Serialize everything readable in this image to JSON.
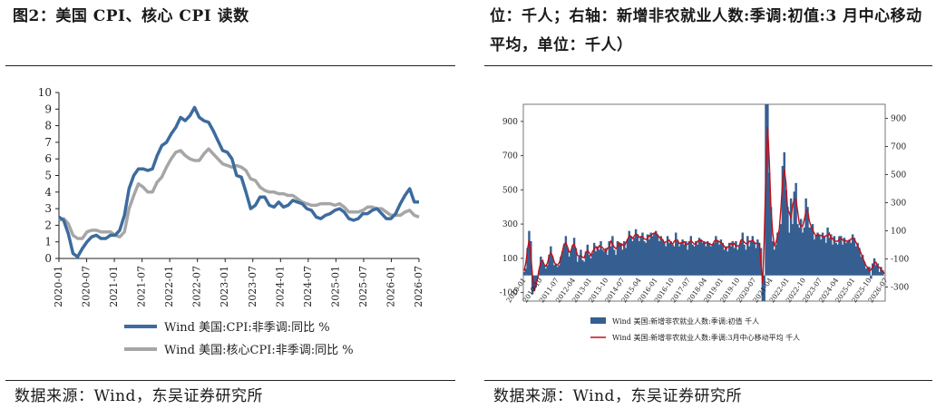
{
  "left": {
    "title": "图2：美国 CPI、核心 CPI 读数",
    "source": "数据来源：Wind，东吴证券研究所",
    "chart_data": {
      "type": "line",
      "title": "",
      "ylim": [
        0,
        10
      ],
      "yticks": [
        "0",
        "1",
        "2",
        "3",
        "4",
        "5",
        "6",
        "7",
        "8",
        "9",
        "10"
      ],
      "xticks": [
        "2020-01",
        "2020-07",
        "2021-01",
        "2021-07",
        "2022-01",
        "2022-07",
        "2023-01",
        "2023-07",
        "2024-01",
        "2024-07",
        "2025-01",
        "2025-07",
        "2026-01",
        "2026-07"
      ],
      "legend_position": "bottom",
      "colors": {
        "cpi": "#3d6b9e",
        "core": "#a6a6a6"
      },
      "series": [
        {
          "name": "Wind 美国:CPI:非季调:同比 %",
          "values": [
            2.5,
            2.3,
            1.5,
            0.3,
            0.1,
            0.6,
            1.0,
            1.3,
            1.4,
            1.2,
            1.2,
            1.4,
            1.4,
            1.7,
            2.6,
            4.2,
            5.0,
            5.4,
            5.4,
            5.3,
            5.4,
            6.2,
            6.8,
            7.0,
            7.5,
            7.9,
            8.5,
            8.3,
            8.6,
            9.1,
            8.5,
            8.3,
            8.2,
            7.7,
            7.1,
            6.5,
            6.4,
            6.0,
            5.0,
            4.9,
            4.0,
            3.0,
            3.2,
            3.7,
            3.7,
            3.2,
            3.1,
            3.4,
            3.1,
            3.2,
            3.5,
            3.4,
            3.3,
            3.0,
            2.9,
            2.5,
            2.4,
            2.6,
            2.7,
            2.9,
            3.0,
            2.8,
            2.4,
            2.3,
            2.4,
            2.7,
            2.7,
            2.9,
            3.0,
            2.7,
            2.4,
            2.4,
            2.7,
            3.3,
            3.8,
            4.2,
            3.4,
            3.4
          ],
          "color": "#3d6b9e"
        },
        {
          "name": "Wind 美国:核心CPI:非季调:同比 %",
          "values": [
            2.3,
            2.4,
            2.1,
            1.4,
            1.2,
            1.2,
            1.6,
            1.7,
            1.7,
            1.6,
            1.6,
            1.6,
            1.4,
            1.3,
            1.6,
            3.0,
            3.8,
            4.5,
            4.3,
            4.0,
            4.0,
            4.6,
            4.9,
            5.5,
            6.0,
            6.4,
            6.5,
            6.2,
            6.0,
            5.9,
            5.9,
            6.3,
            6.6,
            6.3,
            6.0,
            5.7,
            5.6,
            5.5,
            5.6,
            5.5,
            5.3,
            4.8,
            4.7,
            4.3,
            4.1,
            4.0,
            4.0,
            3.9,
            3.9,
            3.8,
            3.8,
            3.6,
            3.4,
            3.3,
            3.2,
            3.2,
            3.3,
            3.3,
            3.3,
            3.2,
            3.3,
            3.1,
            2.8,
            2.8,
            2.8,
            2.9,
            3.1,
            3.1,
            3.0,
            3.0,
            2.8,
            2.6,
            2.6,
            2.6,
            2.8,
            2.9,
            2.6,
            2.5
          ],
          "color": "#a6a6a6"
        }
      ]
    }
  },
  "right": {
    "title": "位：千人；右轴：新增非农就业人数:季调:初值:3 月中心移动平均，单位：千人）",
    "source": "数据来源：Wind，东吴证券研究所",
    "chart_data": {
      "type": "bar",
      "title": "",
      "ylim": [
        -150,
        1000
      ],
      "yticks_left": [
        "-100",
        "100",
        "300",
        "500",
        "700",
        "900"
      ],
      "yticks_right": [
        "-300",
        "-100",
        "100",
        "300",
        "500",
        "700",
        "900"
      ],
      "xticks": [
        "2010-01",
        "2010-10",
        "2011-07",
        "2012-04",
        "2013-01",
        "2013-10",
        "2014-07",
        "2015-04",
        "2016-01",
        "2016-10",
        "2017-07",
        "2018-04",
        "2019-01",
        "2019-10",
        "2020-07",
        "2021-04",
        "2022-01",
        "2022-10",
        "2023-07",
        "2024-04",
        "2025-01",
        "2025-10",
        "2026-07"
      ],
      "legend_position": "bottom",
      "colors": {
        "bars": "#365f91",
        "ma": "#c0101a"
      },
      "series": [
        {
          "name": "Wind 美国:新增非农就业人数:季调:初值 千人",
          "values": [
            20,
            40,
            160,
            260,
            200,
            -110,
            -90,
            -70,
            -20,
            30,
            110,
            90,
            60,
            40,
            60,
            120,
            170,
            110,
            60,
            70,
            50,
            60,
            110,
            140,
            180,
            230,
            160,
            110,
            140,
            170,
            220,
            160,
            80,
            110,
            150,
            90,
            80,
            140,
            180,
            120,
            100,
            130,
            190,
            140,
            170,
            150,
            200,
            150,
            140,
            160,
            120,
            200,
            170,
            230,
            150,
            120,
            200,
            180,
            190,
            150,
            200,
            160,
            210,
            260,
            230,
            200,
            220,
            270,
            240,
            200,
            230,
            250,
            200,
            190,
            240,
            210,
            250,
            230,
            250,
            260,
            240,
            200,
            230,
            210,
            190,
            170,
            230,
            190,
            200,
            180,
            170,
            250,
            200,
            170,
            190,
            210,
            180,
            200,
            150,
            200,
            230,
            180,
            170,
            200,
            180,
            220,
            210,
            190,
            200,
            170,
            200,
            190,
            170,
            180,
            190,
            230,
            200,
            180,
            210,
            190,
            150,
            170,
            140,
            190,
            170,
            200,
            160,
            200,
            150,
            170,
            200,
            250,
            180,
            150,
            230,
            170,
            200,
            230,
            190,
            160,
            210,
            190,
            160,
            -150,
            -150,
            1000,
            1000,
            600,
            400,
            200,
            150,
            180,
            250,
            260,
            300,
            640,
            720,
            500,
            400,
            250,
            450,
            300,
            490,
            540,
            300,
            280,
            330,
            250,
            280,
            450,
            400,
            280,
            280,
            300,
            210,
            230,
            250,
            240,
            210,
            250,
            230,
            190,
            280,
            220,
            240,
            180,
            230,
            190,
            180,
            230,
            230,
            180,
            220,
            190,
            200,
            210,
            190,
            240,
            220,
            170,
            190,
            160,
            110,
            120,
            80,
            40,
            50,
            50,
            -20,
            70,
            100,
            60,
            70,
            20,
            50,
            30,
            0
          ],
          "color": "#365f91"
        },
        {
          "name": "Wind 美国:新增非农就业人数:季调:3月中心移动平均 千人",
          "color": "#c0101a"
        }
      ]
    }
  }
}
